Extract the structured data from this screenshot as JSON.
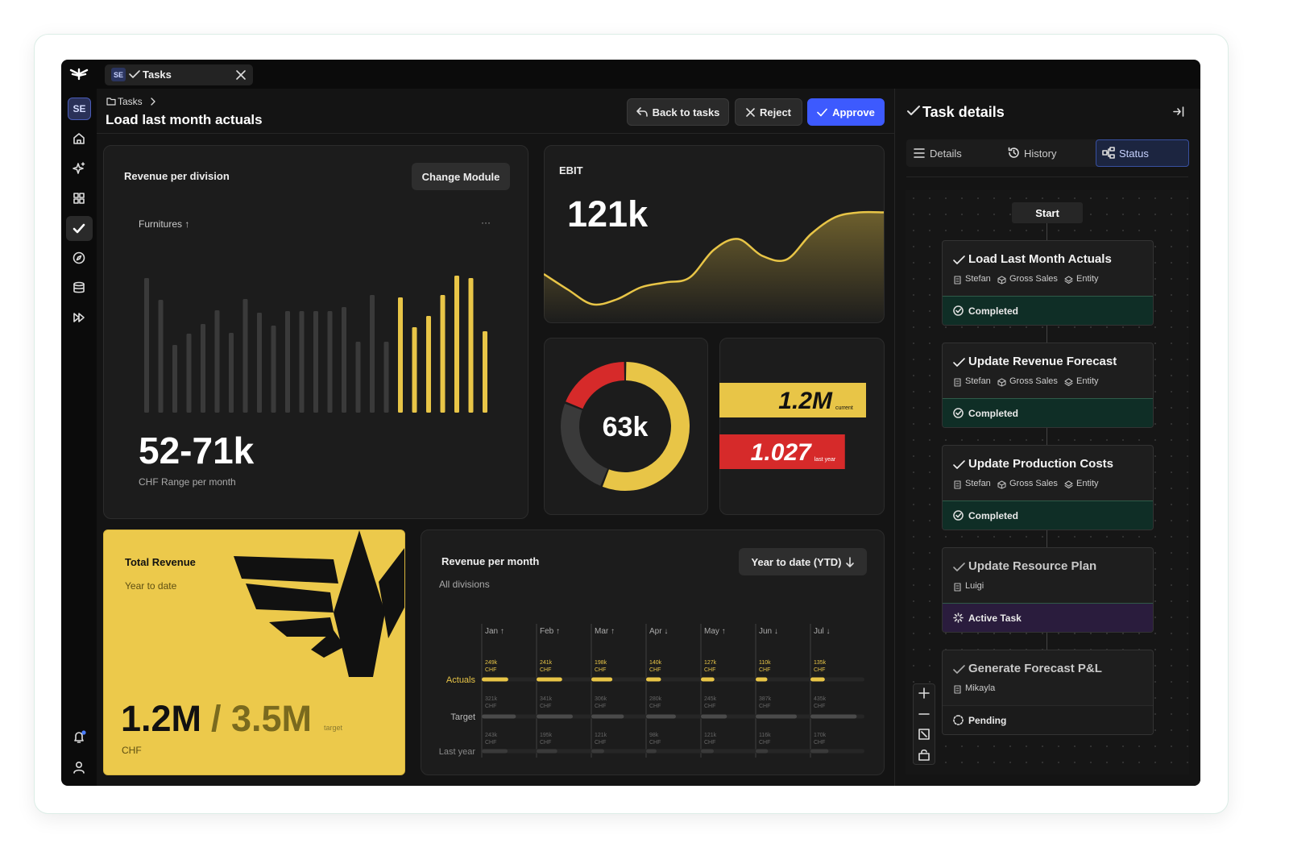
{
  "app": {
    "tab_initials": "SE",
    "tab_label": "Tasks",
    "avatar": "SE"
  },
  "header": {
    "breadcrumb": "Tasks",
    "title": "Load last month actuals",
    "buttons": [
      "Back to tasks",
      "Reject",
      "Approve"
    ]
  },
  "revenue_division": {
    "title": "Revenue per division",
    "button": "Change Module",
    "filter": "Furnitures ↑",
    "menu": "···",
    "value": "52-71k",
    "caption": "CHF Range per month",
    "chart": {
      "type": "bar",
      "ylim": [
        0,
        180
      ],
      "series": [
        {
          "color": "#3a3a3a",
          "values": [
            167,
            140,
            84,
            98,
            110,
            127,
            99,
            141,
            124,
            108,
            126,
            126,
            126,
            126,
            131,
            88,
            146,
            88
          ]
        },
        {
          "color": "#e8c547",
          "values": [
            143,
            106,
            120,
            146,
            170,
            167,
            101
          ]
        }
      ]
    }
  },
  "ebit": {
    "title": "EBIT",
    "value": "121k",
    "chart": {
      "type": "area",
      "color": "#e8c547",
      "ylim": [
        0,
        100
      ],
      "values": [
        40,
        27,
        15,
        19,
        29,
        33,
        37,
        60,
        69,
        55,
        52,
        73,
        87,
        91,
        91
      ]
    }
  },
  "donut": {
    "label": "63k",
    "chart": {
      "type": "pie",
      "values": [
        56,
        25,
        19
      ],
      "colors": [
        "#e8c547",
        "#3a3a3a",
        "#d62a2a"
      ]
    }
  },
  "comparison": {
    "chart": {
      "type": "bar",
      "xlim": [
        0,
        1.2
      ],
      "values": [
        1.2,
        1.027
      ],
      "value_labels": [
        "1.2M",
        "1.027"
      ],
      "notes": [
        "current",
        "last year"
      ],
      "colors": [
        "#e8c547",
        "#d62a2a"
      ]
    }
  },
  "total_revenue": {
    "title": "Total Revenue",
    "subtitle": "Year to date",
    "value": "1.2M",
    "target": "/ 3.5M",
    "target_label": "target",
    "unit": "CHF"
  },
  "revenue_month": {
    "title": "Revenue per month",
    "button": "Year to date (YTD)",
    "subtitle": "All divisions",
    "chart": {
      "type": "bar",
      "categories": [
        "Jan ↑",
        "Feb ↑",
        "Mar ↑",
        "Apr ↓",
        "May ↑",
        "Jun ↓",
        "Jul ↓"
      ],
      "unit": "CHF",
      "xlim": [
        0,
        470
      ],
      "series": [
        {
          "name": "Actuals",
          "color": "#e8c547",
          "values": [
            249,
            241,
            198,
            140,
            127,
            110,
            135
          ],
          "value_labels": [
            "249k",
            "241k",
            "198k",
            "140k",
            "127k",
            "110k",
            "135k"
          ]
        },
        {
          "name": "Target",
          "color": "#4a4a4a",
          "values": [
            321,
            341,
            306,
            280,
            245,
            387,
            435
          ],
          "value_labels": [
            "321k",
            "341k",
            "306k",
            "280k",
            "245k",
            "387k",
            "435k"
          ]
        },
        {
          "name": "Last year",
          "color": "#3a3a3a",
          "values": [
            243,
            195,
            121,
            98,
            121,
            116,
            170
          ],
          "value_labels": [
            "243k",
            "195k",
            "121k",
            "98k",
            "121k",
            "116k",
            "170k"
          ]
        }
      ]
    }
  },
  "task_details": {
    "title": "Task details",
    "tabs": [
      "Details",
      "History",
      "Status"
    ],
    "start": "Start",
    "tasks": [
      {
        "name": "Load Last Month Actuals",
        "tags": [
          "Stefan",
          "Gross Sales",
          "Entity"
        ],
        "status": "Completed",
        "color": "#0f2e26"
      },
      {
        "name": "Update Revenue Forecast",
        "tags": [
          "Stefan",
          "Gross Sales",
          "Entity"
        ],
        "status": "Completed",
        "color": "#0f2e26"
      },
      {
        "name": "Update Production Costs",
        "tags": [
          "Stefan",
          "Gross Sales",
          "Entity"
        ],
        "status": "Completed",
        "color": "#0f2e26"
      },
      {
        "name": "Update Resource Plan",
        "tags": [
          "Luigi"
        ],
        "status": "Active Task",
        "color": "#2a1c3d"
      },
      {
        "name": "Generate Forecast P&L",
        "tags": [
          "Mikayla"
        ],
        "status": "Pending",
        "color": "#1b1b1b"
      }
    ]
  }
}
